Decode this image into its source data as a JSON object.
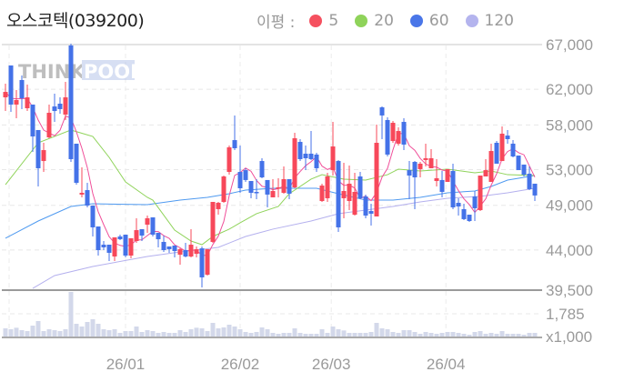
{
  "header": {
    "title": "오스코텍(039200)",
    "legend_label": "이평 :"
  },
  "watermark": "THINKPOOL",
  "colors": {
    "up": "#f7485a",
    "down": "#4472e8",
    "volume": "#d3d8ea",
    "ma5": "#f0509a",
    "ma20": "#8fd35a",
    "ma60": "#4f9af0",
    "ma120": "#b4b0ee"
  },
  "chart_data": {
    "type": "candlestick",
    "price_ticks": [
      "67,000",
      "62,000",
      "58,000",
      "53,000",
      "49,000",
      "44,000",
      "39,500"
    ],
    "price_tick_values": [
      67000,
      62000,
      58000,
      53000,
      49000,
      44000,
      39500
    ],
    "ylim": [
      39500,
      67000
    ],
    "volume_ticks": [
      "1,785",
      "x1,000"
    ],
    "volume_tick_values": [
      1785,
      0
    ],
    "volume_unit": "x1,000",
    "date_labels": [
      {
        "label": "26/01",
        "index": 22
      },
      {
        "label": "26/02",
        "index": 43
      },
      {
        "label": "26/03",
        "index": 59.7
      },
      {
        "label": "26/04",
        "index": 80.7
      }
    ],
    "moving_averages": [
      {
        "name": "5",
        "color": "#f5505f"
      },
      {
        "name": "20",
        "color": "#8fd35a"
      },
      {
        "name": "60",
        "color": "#4a76e8"
      },
      {
        "name": "120",
        "color": "#b4b4ee"
      }
    ],
    "ohlc": [
      [
        61090,
        62620,
        59560,
        61700
      ],
      [
        64660,
        64660,
        59460,
        60280
      ],
      [
        60280,
        61910,
        58750,
        60790
      ],
      [
        63030,
        63540,
        59770,
        60990
      ],
      [
        59870,
        62520,
        59560,
        61090
      ],
      [
        60280,
        60280,
        54980,
        56710
      ],
      [
        57430,
        57430,
        51110,
        53150
      ],
      [
        53960,
        56000,
        52740,
        55180
      ],
      [
        56610,
        60280,
        56510,
        59360
      ],
      [
        60070,
        61500,
        58340,
        59560
      ],
      [
        60380,
        61090,
        59260,
        59770
      ],
      [
        59160,
        62820,
        58550,
        61090
      ],
      [
        66900,
        67100,
        53860,
        54170
      ],
      [
        55900,
        55900,
        51310,
        51520
      ],
      [
        50200,
        53250,
        49890,
        50400
      ],
      [
        50700,
        51520,
        48770,
        48970
      ],
      [
        48970,
        48970,
        45510,
        46530
      ],
      [
        46630,
        46630,
        43370,
        43980
      ],
      [
        44590,
        45000,
        43980,
        44290
      ],
      [
        44590,
        44590,
        42760,
        43680
      ],
      [
        43270,
        45410,
        42760,
        45410
      ],
      [
        45510,
        45710,
        45100,
        45200
      ],
      [
        45710,
        45710,
        43170,
        43370
      ],
      [
        43370,
        45310,
        43070,
        45310
      ],
      [
        45000,
        47550,
        44800,
        46220
      ],
      [
        46330,
        46330,
        45000,
        45610
      ],
      [
        46830,
        47850,
        45920,
        47550
      ],
      [
        47650,
        47650,
        45510,
        45710
      ],
      [
        45920,
        45920,
        44290,
        45200
      ],
      [
        44900,
        45610,
        43780,
        43980
      ],
      [
        44390,
        44390,
        43680,
        44080
      ],
      [
        44490,
        44490,
        43170,
        43880
      ],
      [
        43470,
        44180,
        42350,
        44080
      ],
      [
        43980,
        44800,
        43170,
        43270
      ],
      [
        43270,
        46330,
        43170,
        44590
      ],
      [
        43570,
        44390,
        43170,
        44080
      ],
      [
        44180,
        44390,
        39810,
        40930
      ],
      [
        41230,
        44080,
        41130,
        44080
      ],
      [
        44900,
        49380,
        44800,
        49380
      ],
      [
        48570,
        49380,
        47950,
        49280
      ],
      [
        49380,
        52330,
        49280,
        52230
      ],
      [
        52740,
        55690,
        52430,
        55490
      ],
      [
        56300,
        59060,
        55180,
        55390
      ],
      [
        52740,
        55690,
        50400,
        50910
      ],
      [
        52940,
        53150,
        51620,
        51830
      ],
      [
        51720,
        51720,
        49790,
        50400
      ],
      [
        50500,
        51930,
        49690,
        50400
      ],
      [
        53960,
        54270,
        52030,
        52130
      ],
      [
        51830,
        51830,
        48770,
        50200
      ],
      [
        49890,
        51930,
        49890,
        50600
      ],
      [
        50910,
        52030,
        49890,
        51010
      ],
      [
        50400,
        53350,
        50300,
        51930
      ],
      [
        51930,
        51930,
        49690,
        50300
      ],
      [
        51010,
        57120,
        50910,
        56510
      ],
      [
        56100,
        56410,
        53960,
        54170
      ],
      [
        54780,
        55690,
        52940,
        54270
      ],
      [
        54780,
        57320,
        54070,
        54170
      ],
      [
        54680,
        54880,
        52740,
        53150
      ],
      [
        49480,
        51420,
        49380,
        51210
      ],
      [
        49790,
        52640,
        49380,
        52230
      ],
      [
        52940,
        58340,
        52330,
        55590
      ],
      [
        53960,
        54070,
        46020,
        46530
      ],
      [
        49790,
        53760,
        47550,
        50600
      ],
      [
        49480,
        53450,
        48460,
        51420
      ],
      [
        47950,
        52640,
        47850,
        50500
      ],
      [
        52230,
        52740,
        49690,
        49790
      ],
      [
        49990,
        50200,
        47550,
        47850
      ],
      [
        48360,
        49170,
        46730,
        48060
      ],
      [
        47750,
        58040,
        47750,
        56000
      ],
      [
        59970,
        60070,
        56410,
        59060
      ],
      [
        58550,
        58850,
        54470,
        54680
      ],
      [
        56200,
        58440,
        56000,
        58240
      ],
      [
        55900,
        57730,
        55690,
        57320
      ],
      [
        58340,
        58750,
        55180,
        55800
      ],
      [
        52940,
        53960,
        49690,
        52330
      ],
      [
        53860,
        53960,
        48570,
        52130
      ],
      [
        53050,
        53860,
        52130,
        53660
      ],
      [
        54070,
        55900,
        53350,
        54270
      ],
      [
        53150,
        55290,
        53150,
        54270
      ],
      [
        51720,
        54170,
        51110,
        52030
      ],
      [
        51830,
        52840,
        49890,
        50500
      ],
      [
        51620,
        53050,
        51620,
        53050
      ],
      [
        52840,
        53660,
        48570,
        48770
      ],
      [
        49280,
        49790,
        47850,
        48870
      ],
      [
        48570,
        49170,
        47340,
        47450
      ],
      [
        47950,
        47950,
        47140,
        47240
      ],
      [
        49990,
        50600,
        47240,
        48670
      ],
      [
        48460,
        52330,
        48360,
        52330
      ],
      [
        52230,
        54170,
        52230,
        52940
      ],
      [
        51620,
        55900,
        51620,
        55080
      ],
      [
        56000,
        56200,
        53660,
        53660
      ],
      [
        53960,
        57830,
        53960,
        57020
      ],
      [
        56810,
        57430,
        55900,
        56410
      ],
      [
        55900,
        56300,
        54370,
        54470
      ],
      [
        54570,
        54570,
        52940,
        52940
      ],
      [
        53560,
        53560,
        52230,
        52430
      ],
      [
        52540,
        53350,
        50700,
        50810
      ],
      [
        51420,
        51420,
        49480,
        50100
      ]
    ],
    "volume": [
      643,
      571,
      690,
      500,
      428,
      857,
      1214,
      428,
      571,
      500,
      428,
      571,
      3499,
      1000,
      785,
      1142,
      1357,
      1000,
      571,
      500,
      571,
      286,
      428,
      428,
      785,
      357,
      500,
      428,
      286,
      357,
      286,
      286,
      500,
      357,
      571,
      690,
      643,
      428,
      1071,
      643,
      714,
      928,
      785,
      571,
      357,
      286,
      357,
      714,
      571,
      286,
      214,
      286,
      286,
      643,
      286,
      214,
      214,
      214,
      571,
      286,
      785,
      571,
      476,
      286,
      286,
      286,
      286,
      357,
      1071,
      643,
      571,
      357,
      286,
      500,
      500,
      357,
      214,
      357,
      286,
      214,
      286,
      357,
      357,
      286,
      214,
      143,
      357,
      428,
      214,
      286,
      214,
      428,
      214,
      214,
      214,
      143,
      286,
      286
    ],
    "ma20": [
      [
        0,
        51310
      ],
      [
        6,
        56000
      ],
      [
        12,
        57430
      ],
      [
        16,
        56710
      ],
      [
        19,
        54370
      ],
      [
        22,
        51620
      ],
      [
        26,
        49890
      ],
      [
        27,
        49580
      ],
      [
        31,
        46220
      ],
      [
        34,
        45000
      ],
      [
        36,
        44590
      ],
      [
        38,
        45510
      ],
      [
        41,
        46330
      ],
      [
        43,
        47040
      ],
      [
        46,
        48060
      ],
      [
        50,
        48870
      ],
      [
        52,
        50300
      ],
      [
        56,
        51930
      ],
      [
        58,
        52430
      ],
      [
        62,
        51930
      ],
      [
        66,
        51830
      ],
      [
        70,
        52430
      ],
      [
        72,
        53050
      ],
      [
        76,
        52840
      ],
      [
        81,
        53050
      ],
      [
        86,
        52640
      ],
      [
        89,
        52840
      ],
      [
        92,
        52430
      ],
      [
        97,
        52330
      ]
    ],
    "ma60": [
      [
        0,
        45310
      ],
      [
        6,
        47240
      ],
      [
        12,
        48870
      ],
      [
        16,
        49170
      ],
      [
        26,
        49070
      ],
      [
        32,
        49580
      ],
      [
        37,
        49890
      ],
      [
        41,
        50300
      ],
      [
        44,
        50700
      ],
      [
        49,
        50910
      ],
      [
        57,
        50910
      ],
      [
        61,
        50300
      ],
      [
        66,
        49580
      ],
      [
        71,
        49580
      ],
      [
        76,
        49890
      ],
      [
        81,
        50400
      ],
      [
        86,
        50600
      ],
      [
        89,
        51110
      ],
      [
        92,
        51820
      ],
      [
        97,
        52330
      ]
    ],
    "ma120": [
      [
        5,
        39700
      ],
      [
        9,
        41130
      ],
      [
        16,
        42150
      ],
      [
        26,
        43270
      ],
      [
        32,
        43780
      ],
      [
        39,
        44290
      ],
      [
        44,
        45510
      ],
      [
        49,
        46330
      ],
      [
        56,
        47240
      ],
      [
        61,
        48060
      ],
      [
        66,
        48460
      ],
      [
        71,
        48870
      ],
      [
        76,
        49380
      ],
      [
        81,
        49790
      ],
      [
        87,
        50000
      ],
      [
        92,
        50400
      ],
      [
        97,
        50910
      ]
    ]
  }
}
